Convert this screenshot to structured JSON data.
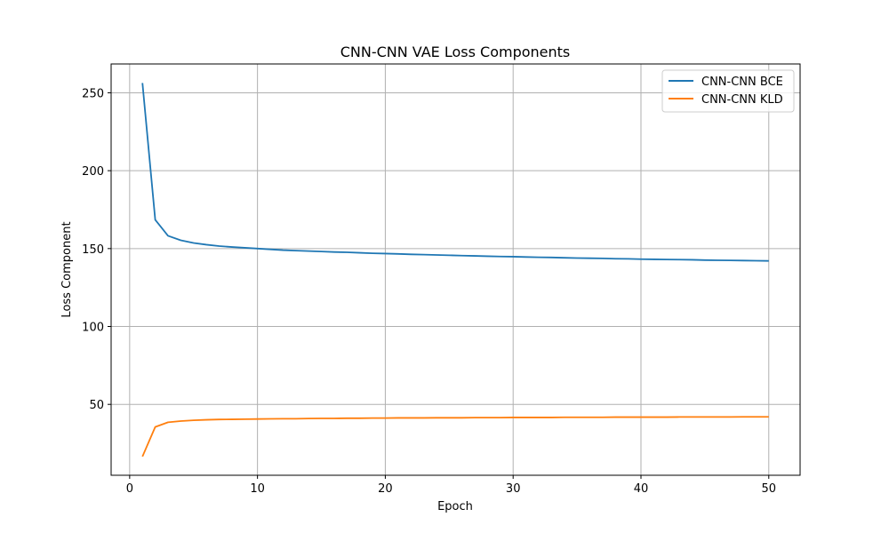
{
  "chart_data": {
    "type": "line",
    "title": "CNN-CNN VAE Loss Components",
    "xlabel": "Epoch",
    "ylabel": "Loss Component",
    "xlim": [
      -1.45,
      52.45
    ],
    "ylim": [
      4.5,
      268.5
    ],
    "xticks": [
      0,
      10,
      20,
      30,
      40,
      50
    ],
    "yticks": [
      50,
      100,
      150,
      200,
      250
    ],
    "grid": true,
    "legend_position": "top-right",
    "x": [
      1,
      2,
      3,
      4,
      5,
      6,
      7,
      8,
      9,
      10,
      11,
      12,
      13,
      14,
      15,
      16,
      17,
      18,
      19,
      20,
      21,
      22,
      23,
      24,
      25,
      26,
      27,
      28,
      29,
      30,
      31,
      32,
      33,
      34,
      35,
      36,
      37,
      38,
      39,
      40,
      41,
      42,
      43,
      44,
      45,
      46,
      47,
      48,
      49,
      50
    ],
    "series": [
      {
        "name": "CNN-CNN BCE",
        "color": "#1f77b4",
        "values": [
          256.3,
          168.5,
          158.2,
          155.3,
          153.6,
          152.5,
          151.6,
          151.0,
          150.5,
          150.0,
          149.5,
          149.0,
          148.7,
          148.4,
          148.1,
          147.8,
          147.6,
          147.3,
          147.0,
          146.8,
          146.6,
          146.3,
          146.1,
          145.9,
          145.7,
          145.5,
          145.3,
          145.1,
          144.9,
          144.8,
          144.6,
          144.4,
          144.3,
          144.1,
          143.9,
          143.8,
          143.7,
          143.5,
          143.4,
          143.2,
          143.1,
          143.0,
          142.9,
          142.8,
          142.6,
          142.5,
          142.4,
          142.3,
          142.2,
          142.1
        ]
      },
      {
        "name": "CNN-CNN KLD",
        "color": "#ff7f0e",
        "values": [
          16.5,
          35.5,
          38.5,
          39.3,
          39.8,
          40.1,
          40.3,
          40.4,
          40.5,
          40.6,
          40.7,
          40.8,
          40.8,
          40.9,
          41.0,
          41.0,
          41.1,
          41.1,
          41.2,
          41.2,
          41.3,
          41.3,
          41.3,
          41.4,
          41.4,
          41.4,
          41.5,
          41.5,
          41.5,
          41.6,
          41.6,
          41.6,
          41.6,
          41.7,
          41.7,
          41.7,
          41.7,
          41.8,
          41.8,
          41.8,
          41.8,
          41.8,
          41.9,
          41.9,
          41.9,
          41.9,
          41.9,
          42.0,
          42.0,
          42.0
        ]
      }
    ]
  }
}
